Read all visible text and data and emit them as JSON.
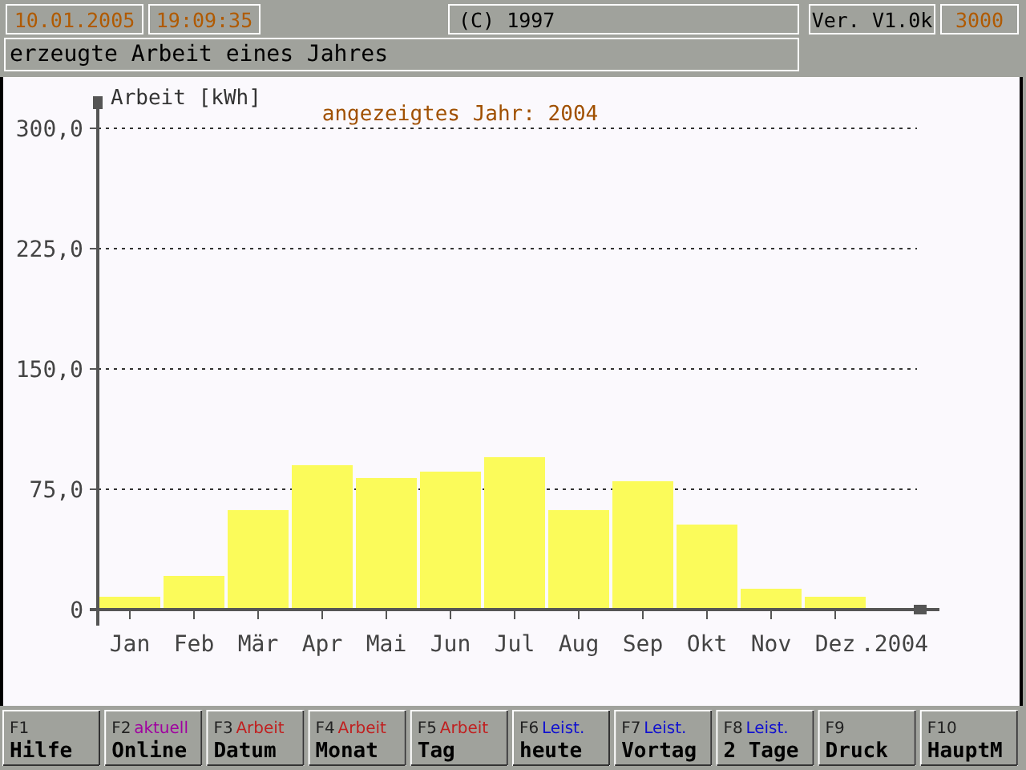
{
  "chart_data": {
    "type": "bar",
    "title": "erzeugte Arbeit eines Jahres",
    "subtitle": "angezeigtes Jahr: 2004",
    "ylabel": "Arbeit [kWh]",
    "categories": [
      "Jan",
      "Feb",
      "Mär",
      "Apr",
      "Mai",
      "Jun",
      "Jul",
      "Aug",
      "Sep",
      "Okt",
      "Nov",
      "Dez"
    ],
    "values": [
      8,
      21,
      62,
      90,
      82,
      86,
      95,
      62,
      80,
      53,
      13,
      8
    ],
    "color": "#fbfb5a",
    "ylim": [
      0,
      318
    ],
    "yticks": [
      0,
      {
        "value": 75,
        "label": "75,0"
      },
      {
        "value": 150,
        "label": "150,0"
      },
      {
        "value": 225,
        "label": "225,0"
      },
      {
        "value": 300,
        "label": "300,0"
      }
    ],
    "grid": "y",
    "annotations": [
      "10.01.2005",
      "19:09:35",
      "(C) 1997",
      "Ver. V1.0k",
      "3000",
      ".2004",
      "F1",
      null,
      "Hilfe",
      "F2",
      "aktuell",
      "Online",
      "F3",
      "Arbeit",
      "Datum",
      "F4",
      "Arbeit",
      "Monat",
      "F5",
      "Arbeit",
      "Tag",
      "F6",
      "Leist.",
      "heute",
      "F7",
      "Leist.",
      "Vortag",
      "F8",
      "Leist.",
      "2 Tage",
      "F9",
      null,
      "Druck",
      "F10",
      null,
      "HauptM"
    ]
  }
}
